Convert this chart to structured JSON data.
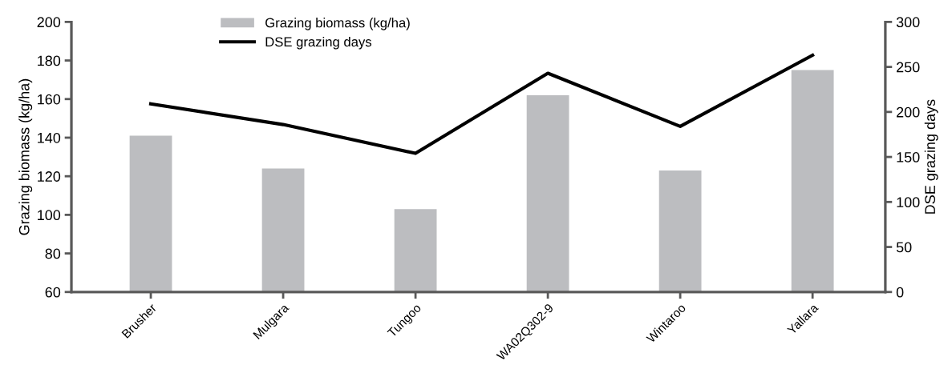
{
  "chart_data": {
    "type": "bar",
    "ylabel": "Grazing biomass (kg/ha)",
    "y2label": "DSE grazing days",
    "categories": [
      "Brusher",
      "Mulgara",
      "Tungoo",
      "WA02Q302-9",
      "Wintaroo",
      "Yallara"
    ],
    "series": [
      {
        "name": "Grazing biomass (kg/ha)",
        "color": "#bcbdc0",
        "values": [
          141,
          124,
          103,
          162,
          123,
          175
        ]
      },
      {
        "name": "DSE grazing days",
        "type": "line",
        "axis": "y2",
        "color": "#000000",
        "values": [
          209,
          186,
          154,
          243,
          184,
          263
        ]
      }
    ],
    "ylim": [
      60,
      200
    ],
    "yticks": [
      60,
      80,
      100,
      120,
      140,
      160,
      180,
      200
    ],
    "y2lim": [
      0,
      300
    ],
    "y2ticks": [
      0,
      50,
      100,
      150,
      200,
      250,
      300
    ],
    "grid": false,
    "legend": "top",
    "marker": "none",
    "line_style": "solid"
  }
}
